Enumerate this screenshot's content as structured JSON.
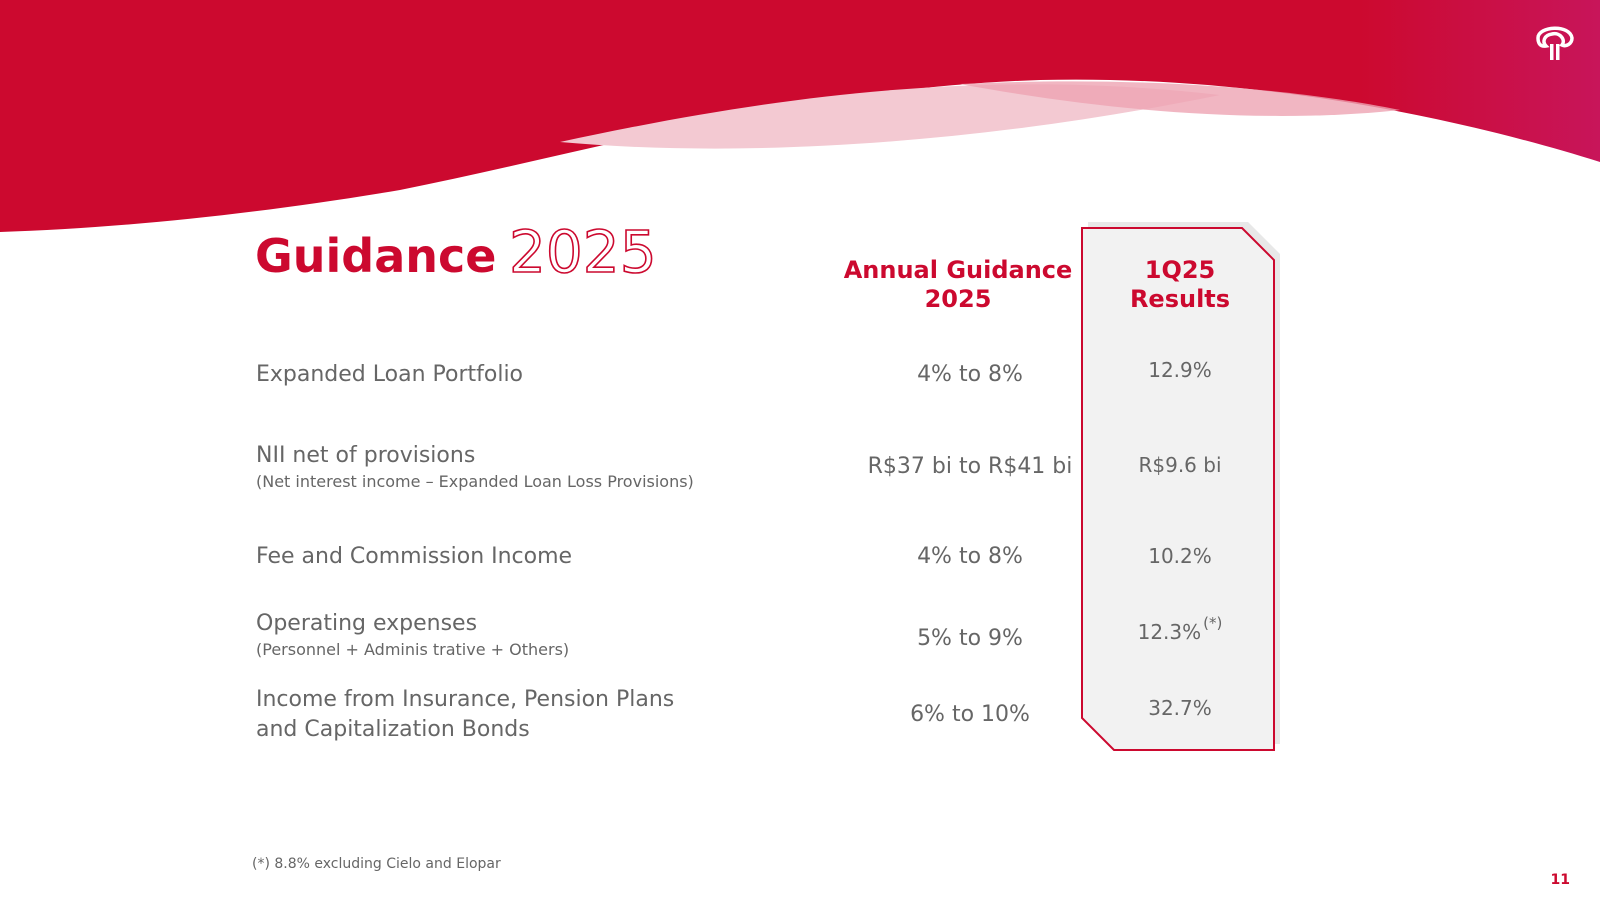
{
  "colors": {
    "brand_red": "#cc092f",
    "brand_magenta": "#c8155a",
    "wave_light": "#f3c9d2",
    "text_gray": "#666666",
    "panel_gray": "#f2f2f2"
  },
  "title": {
    "word": "Guidance",
    "year": "2025"
  },
  "columns": {
    "annual_guidance": "Annual Guidance 2025",
    "results": "1Q25 Results"
  },
  "rows": [
    {
      "label": "Expanded Loan Portfolio",
      "sublabel": "",
      "guidance": "4% to 8%",
      "result": "12.9%",
      "result_note": ""
    },
    {
      "label": "NII net of provisions",
      "sublabel": "(Net interest income – Expanded Loan Loss Provisions)",
      "guidance": "R$37 bi to R$41 bi",
      "result": "R$9.6 bi",
      "result_note": ""
    },
    {
      "label": "Fee and Commission Income",
      "sublabel": "",
      "guidance": "4% to 8%",
      "result": "10.2%",
      "result_note": ""
    },
    {
      "label": "Operating expenses",
      "sublabel": "(Personnel + Adminis trative + Others)",
      "guidance": "5% to 9%",
      "result": "12.3%",
      "result_note": "(*)"
    },
    {
      "label": "Income from Insurance, Pension Plans",
      "label_line2": "and Capitalization Bonds",
      "sublabel": "",
      "guidance": "6% to 10%",
      "result": "32.7%",
      "result_note": ""
    }
  ],
  "footnote": "(*) 8.8% excluding Cielo and Elopar",
  "page_number": "11",
  "logo_icon": "bradesco-tree-icon"
}
